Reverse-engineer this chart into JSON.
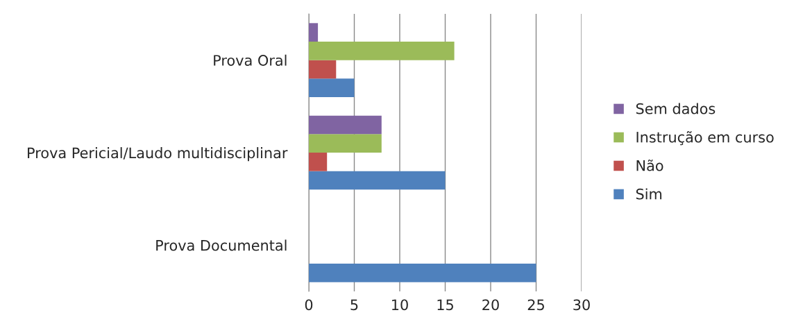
{
  "chart_data": {
    "type": "bar",
    "orientation": "horizontal",
    "categories": [
      "Prova Oral",
      "Prova Pericial/Laudo multidisciplinar",
      "Prova Documental"
    ],
    "series": [
      {
        "name": "Sim",
        "color": "#4f81bd",
        "values": [
          5,
          15,
          25
        ]
      },
      {
        "name": "Não",
        "color": "#c0504d",
        "values": [
          3,
          2,
          0
        ]
      },
      {
        "name": "Instrução em curso",
        "color": "#9bbb59",
        "values": [
          16,
          8,
          0
        ]
      },
      {
        "name": "Sem dados",
        "color": "#8064a2",
        "values": [
          1,
          8,
          0
        ]
      }
    ],
    "xlim": [
      0,
      30
    ],
    "xticks": [
      0,
      5,
      10,
      15,
      20,
      25,
      30
    ],
    "grid": "x",
    "legend": "right"
  }
}
